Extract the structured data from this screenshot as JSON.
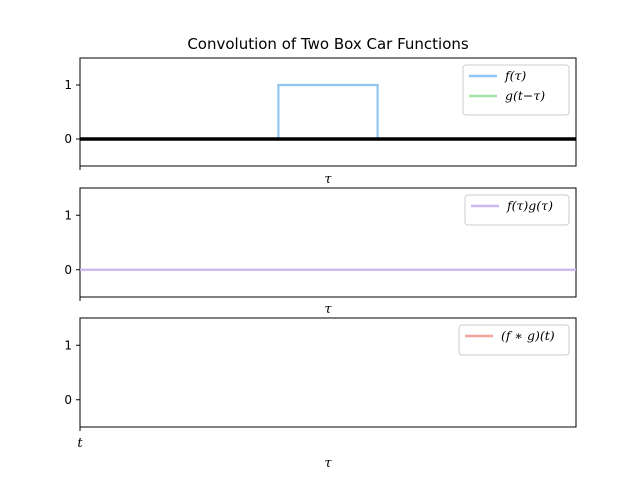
{
  "title": "Convolution of Two Box Car Functions",
  "chart_data": [
    {
      "type": "line",
      "xlabel": "τ",
      "ylim": [
        -0.5,
        1.5
      ],
      "yticks": [
        0,
        1
      ],
      "xlim": [
        0,
        1
      ],
      "legend": "top-right",
      "series": [
        {
          "name": "f(τ)",
          "color": "#92c6f2",
          "x": [
            0.4,
            0.4,
            0.6,
            0.6
          ],
          "y": [
            0,
            1,
            1,
            0
          ]
        },
        {
          "name": "g(t−τ)",
          "color": "#9fe3a6",
          "x": [
            0.0,
            1.0
          ],
          "y": [
            0,
            0
          ]
        }
      ],
      "baseline": {
        "y": 0,
        "color": "#000000"
      }
    },
    {
      "type": "line",
      "xlabel": "τ",
      "ylim": [
        -0.5,
        1.5
      ],
      "yticks": [
        0,
        1
      ],
      "xlim": [
        0,
        1
      ],
      "legend": "top-right",
      "series": [
        {
          "name": "f(τ)g(τ)",
          "color": "#cdb5f2",
          "x": [
            0.0,
            1.0
          ],
          "y": [
            0,
            0
          ]
        }
      ]
    },
    {
      "type": "line",
      "xlabel": "τ",
      "ylim": [
        -0.5,
        1.5
      ],
      "yticks": [
        0,
        1
      ],
      "xlim": [
        0,
        1
      ],
      "xtick_labels": [
        "t"
      ],
      "legend": "top-right",
      "series": [
        {
          "name": "(f ∗ g)(t)",
          "color": "#f4a39a",
          "x": [],
          "y": []
        }
      ]
    }
  ]
}
